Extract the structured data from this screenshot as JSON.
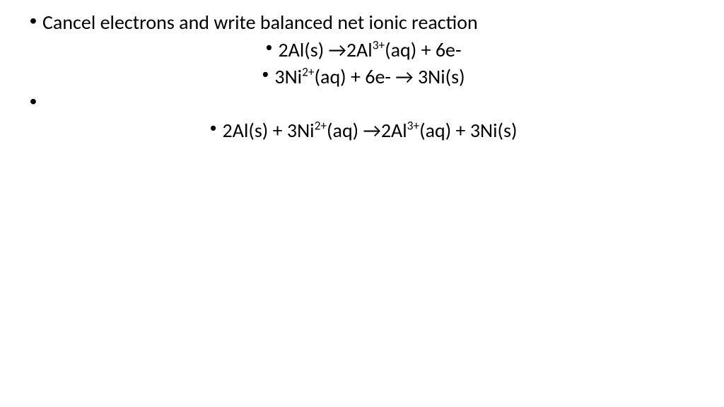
{
  "text_color": "#000000",
  "background_color": "#ffffff",
  "font_family": "Calibri, 'Segoe UI', Arial, sans-serif",
  "font_size_main_pt": 21,
  "line1": {
    "bullet": "•",
    "text": "Cancel electrons and write balanced net ionic reaction"
  },
  "line2": {
    "bullet": "•",
    "prefix": "2Al(s) →2Al",
    "sup1": "3+",
    "suffix": "(aq) + 6e-"
  },
  "line3": {
    "bullet": "•",
    "prefix": "3Ni",
    "sup1": "2+",
    "mid": "(aq) + 6e- → 3Ni(s)"
  },
  "line4_bullet": "•",
  "line5": {
    "bullet": "•",
    "p1": "2Al(s) + 3Ni",
    "sup1": "2+",
    "p2": "(aq) →2Al",
    "sup2": "3+",
    "p3": "(aq) + 3Ni(s)"
  }
}
